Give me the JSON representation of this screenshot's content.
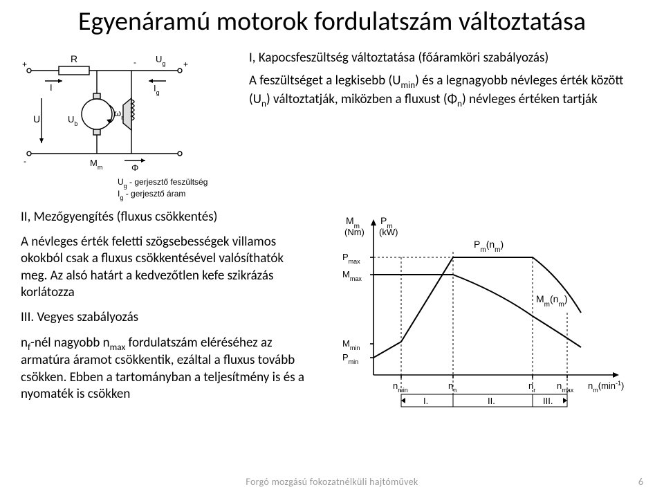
{
  "title": "Egyenáramú motorok fordulatszám változtatása",
  "intro_heading": "I, Kapocsfeszültség változtatása (főáramköri szabályozás)",
  "intro_body_html": "A feszültséget a legkisebb (U<sub>min</sub>) és a legnagyobb névleges érték között (U<sub>n</sub>) változtatják, miközben a fluxust (Φ<sub>n</sub>) névleges értéken tartják",
  "section2_heading": "II, Mezőgyengítés (fluxus csökkentés)",
  "section2_body": "A névleges érték feletti szögsebességek villamos okokból csak a fluxus csökkentésével valósíthatók meg. Az alsó határt a kedvezőtlen kefe szikrázás korlátozza",
  "section3_heading": "III. Vegyes szabályozás",
  "section3_body_html": "n<sub>f</sub>-nél nagyobb n<sub>max</sub> fordulatszám eléréséhez az armatúra áramot csökkentik, ezáltal a fluxus tovább csökken. Ebben a tartományban a teljesítmény is és a nyomaték is csökken",
  "footer": "Forgó mozgású fokozatnélküli hajtóművek",
  "page_number": "6",
  "circuit": {
    "labels": {
      "R": "R",
      "Ug": "U",
      "Ug_sub": "g",
      "I": "I",
      "Ig": "I",
      "Ig_sub": "g",
      "omega": "ω",
      "omega_sub": "m",
      "U": "U",
      "Ub": "U",
      "Ub_sub": "b",
      "Mm": "M",
      "Mm_sub": "m",
      "Phi": "Φ",
      "legend1": "U",
      "legend1_sub": "g",
      "legend1_txt": " - gerjesztő feszültség",
      "legend2": "I",
      "legend2_sub": "g",
      "legend2_txt": " - gerjesztő áram"
    },
    "colors": {
      "stroke": "#000000",
      "fill": "#dddddd",
      "bg": "#ffffff"
    },
    "line_width": 1.4
  },
  "chart": {
    "colors": {
      "stroke": "#000000",
      "bg": "#ffffff"
    },
    "line_width": 1.6,
    "axes": {
      "y1_label": "M",
      "y1_sub": "m",
      "y1_unit": "(Nm)",
      "y2_label": "P",
      "y2_sub": "m",
      "y2_unit": "(kW)",
      "x_unit_html": "n<tspan baseline-shift='sub' font-size='10'>m</tspan>(min<tspan baseline-shift='super' font-size='10'>-1</tspan>)"
    },
    "y_ticks": [
      "P",
      "M",
      "M",
      "P"
    ],
    "y_ticks_sub": [
      "max",
      "max",
      "min",
      "min"
    ],
    "x_ticks": [
      "n",
      "n",
      "n",
      "n"
    ],
    "x_ticks_sub": [
      "min",
      "n",
      "r",
      "max"
    ],
    "curve_labels": {
      "Pm_nm": "P",
      "Pm_nm_sub": "m",
      "Pm_nm_arg": "(n",
      "Pm_nm_arg_sub": "m",
      "Pm_nm_close": ")",
      "Mm_nm": "M",
      "Mm_nm_sub": "m",
      "Mm_nm_arg": "(n",
      "Mm_nm_arg_sub": "m",
      "Mm_nm_close": ")"
    },
    "regions": [
      "I.",
      "II.",
      "III."
    ]
  }
}
